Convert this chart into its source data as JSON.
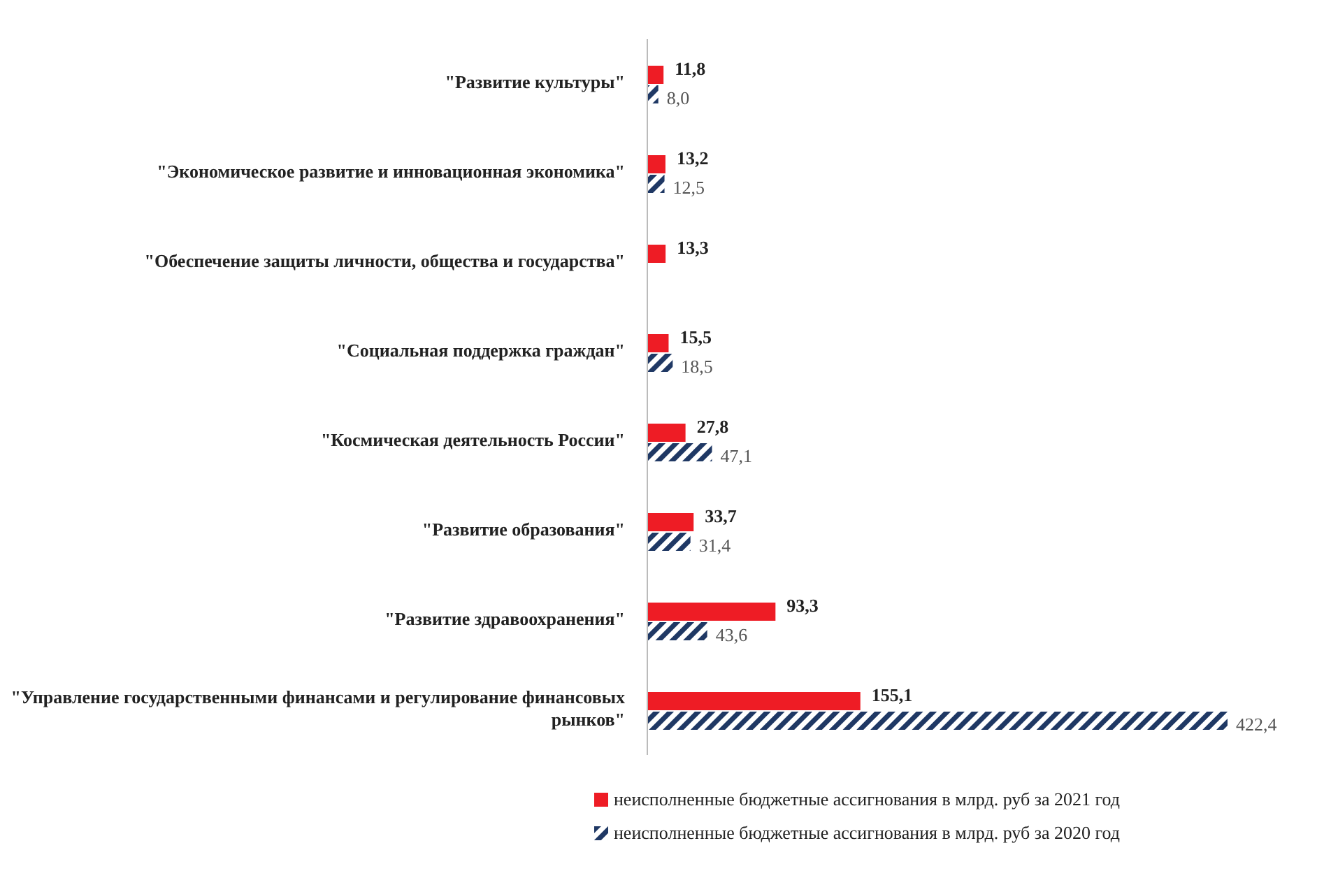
{
  "chart_data": {
    "type": "bar",
    "orientation": "horizontal",
    "categories": [
      "\"Развитие культуры\"",
      "\"Экономическое развитие и инновационная экономика\"",
      "\"Обеспечение защиты личности, общества и государства\"",
      "\"Социальная поддержка граждан\"",
      "\"Космическая деятельность России\"",
      "\"Развитие образования\"",
      "\"Развитие здравоохранения\"",
      "\"Управление государственными финансами и регулирование финансовых рынков\""
    ],
    "series": [
      {
        "name": "неисполненные бюджетные ассигнования в млрд. руб за 2021 год",
        "color": "#ee1c25",
        "values": [
          11.8,
          13.2,
          13.3,
          15.5,
          27.8,
          33.7,
          93.3,
          155.1
        ],
        "value_labels": [
          "11,8",
          "13,2",
          "13,3",
          "15,5",
          "27,8",
          "33,7",
          "93,3",
          "155,1"
        ]
      },
      {
        "name": "неисполненные бюджетные ассигнования в млрд. руб за 2020 год",
        "color": "#1f3864",
        "values": [
          8.0,
          12.5,
          null,
          18.5,
          47.1,
          31.4,
          43.6,
          422.4
        ],
        "value_labels": [
          "8,0",
          "12,5",
          null,
          "18,5",
          "47,1",
          "31,4",
          "43,6",
          "422,4"
        ]
      }
    ],
    "legend": "bottom"
  }
}
